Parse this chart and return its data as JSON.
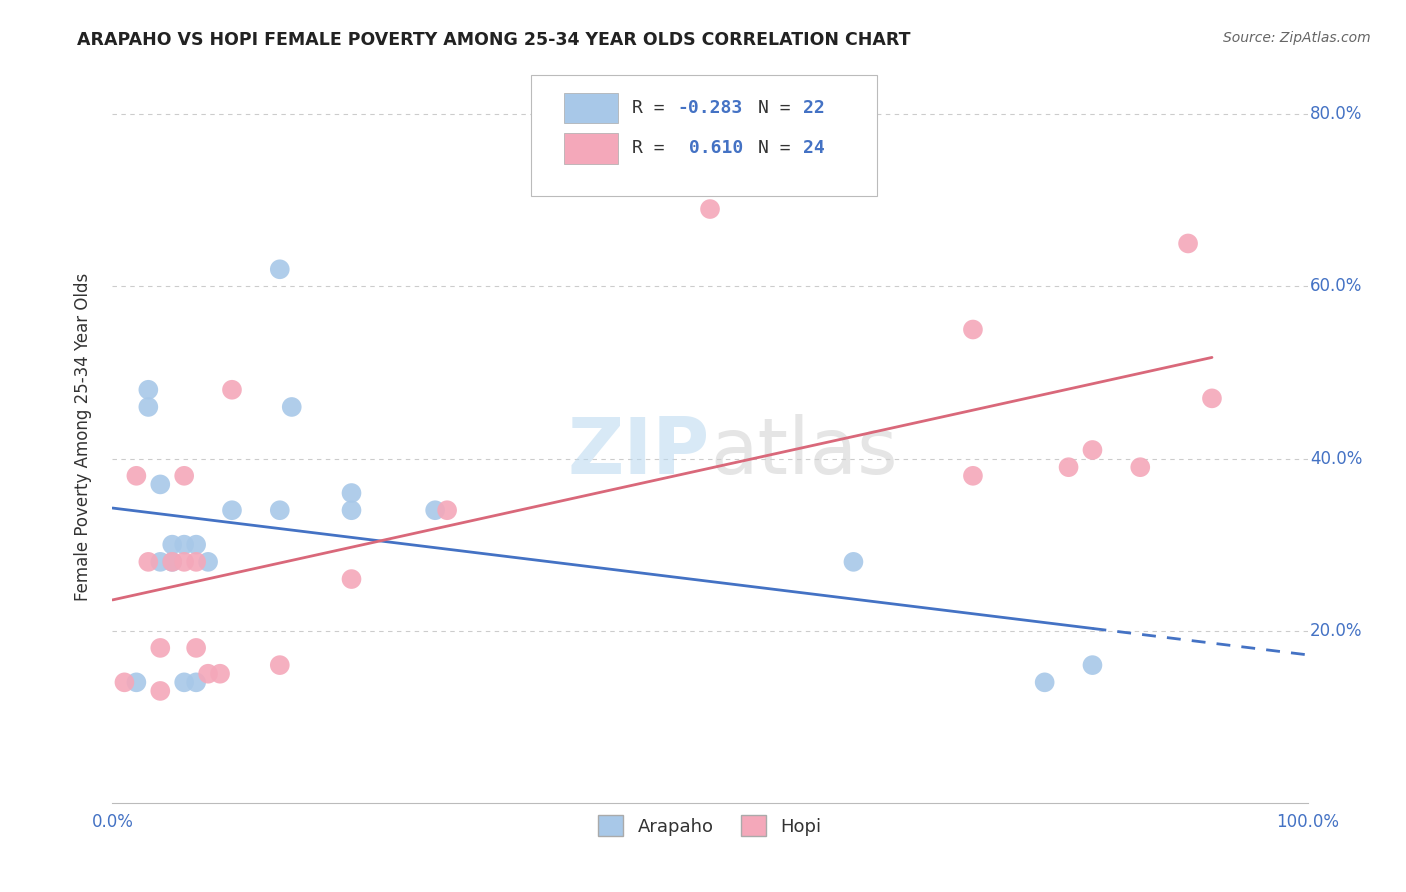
{
  "title": "ARAPAHO VS HOPI FEMALE POVERTY AMONG 25-34 YEAR OLDS CORRELATION CHART",
  "source": "Source: ZipAtlas.com",
  "ylabel": "Female Poverty Among 25-34 Year Olds",
  "xlim": [
    0.0,
    1.0
  ],
  "ylim": [
    0.0,
    0.85
  ],
  "arapaho_color": "#a8c8e8",
  "hopi_color": "#f4a8ba",
  "arapaho_line_color": "#4472c4",
  "hopi_line_color": "#d9687a",
  "tick_color": "#4472c4",
  "arapaho_R": -0.283,
  "arapaho_N": 22,
  "hopi_R": 0.61,
  "hopi_N": 24,
  "arapaho_x": [
    0.02,
    0.03,
    0.03,
    0.04,
    0.04,
    0.05,
    0.05,
    0.06,
    0.06,
    0.07,
    0.07,
    0.08,
    0.1,
    0.14,
    0.14,
    0.15,
    0.2,
    0.2,
    0.27,
    0.62,
    0.78,
    0.82
  ],
  "arapaho_y": [
    0.14,
    0.46,
    0.48,
    0.37,
    0.28,
    0.28,
    0.3,
    0.3,
    0.14,
    0.14,
    0.3,
    0.28,
    0.34,
    0.34,
    0.62,
    0.46,
    0.34,
    0.36,
    0.34,
    0.28,
    0.14,
    0.16
  ],
  "hopi_x": [
    0.01,
    0.02,
    0.03,
    0.04,
    0.04,
    0.05,
    0.06,
    0.06,
    0.07,
    0.07,
    0.08,
    0.09,
    0.1,
    0.14,
    0.2,
    0.28,
    0.5,
    0.72,
    0.72,
    0.8,
    0.82,
    0.86,
    0.9,
    0.92
  ],
  "hopi_y": [
    0.14,
    0.38,
    0.28,
    0.13,
    0.18,
    0.28,
    0.28,
    0.38,
    0.18,
    0.28,
    0.15,
    0.15,
    0.48,
    0.16,
    0.26,
    0.34,
    0.69,
    0.38,
    0.55,
    0.39,
    0.41,
    0.39,
    0.65,
    0.47
  ],
  "background_color": "#ffffff",
  "grid_color": "#cccccc",
  "ytick_vals": [
    0.2,
    0.4,
    0.6,
    0.8
  ],
  "ytick_labels": [
    "20.0%",
    "40.0%",
    "60.0%",
    "80.0%"
  ],
  "xtick_vals": [
    0.0,
    1.0
  ],
  "xtick_labels": [
    "0.0%",
    "100.0%"
  ]
}
